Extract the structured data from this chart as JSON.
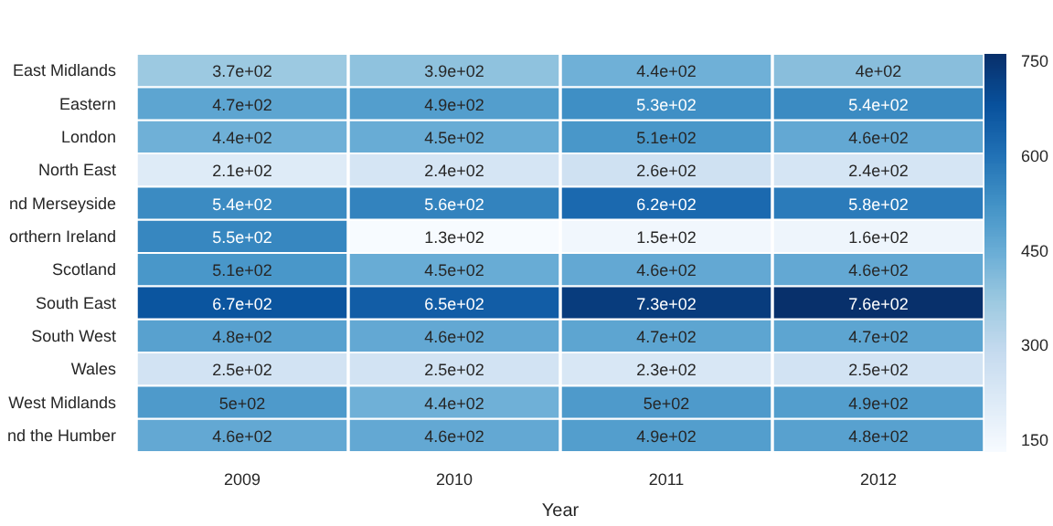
{
  "chart_data": {
    "type": "heatmap",
    "xlabel": "Year",
    "categories": [
      "2009",
      "2010",
      "2011",
      "2012"
    ],
    "y_categories": [
      "East Midlands",
      "Eastern",
      "London",
      "North East",
      "nd Merseyside",
      "orthern Ireland",
      "Scotland",
      "South East",
      "South West",
      "Wales",
      "West Midlands",
      "nd the Humber"
    ],
    "cells": [
      [
        370,
        390,
        440,
        400
      ],
      [
        470,
        490,
        530,
        540
      ],
      [
        440,
        450,
        510,
        460
      ],
      [
        210,
        240,
        260,
        240
      ],
      [
        540,
        560,
        620,
        580
      ],
      [
        550,
        130,
        150,
        160
      ],
      [
        510,
        450,
        460,
        460
      ],
      [
        670,
        650,
        730,
        760
      ],
      [
        480,
        460,
        470,
        470
      ],
      [
        250,
        250,
        230,
        250
      ],
      [
        500,
        440,
        500,
        490
      ],
      [
        460,
        460,
        490,
        480
      ]
    ],
    "cell_labels": [
      [
        "3.7e+02",
        "3.9e+02",
        "4.4e+02",
        "4e+02"
      ],
      [
        "4.7e+02",
        "4.9e+02",
        "5.3e+02",
        "5.4e+02"
      ],
      [
        "4.4e+02",
        "4.5e+02",
        "5.1e+02",
        "4.6e+02"
      ],
      [
        "2.1e+02",
        "2.4e+02",
        "2.6e+02",
        "2.4e+02"
      ],
      [
        "5.4e+02",
        "5.6e+02",
        "6.2e+02",
        "5.8e+02"
      ],
      [
        "5.5e+02",
        "1.3e+02",
        "1.5e+02",
        "1.6e+02"
      ],
      [
        "5.1e+02",
        "4.5e+02",
        "4.6e+02",
        "4.6e+02"
      ],
      [
        "6.7e+02",
        "6.5e+02",
        "7.3e+02",
        "7.6e+02"
      ],
      [
        "4.8e+02",
        "4.6e+02",
        "4.7e+02",
        "4.7e+02"
      ],
      [
        "2.5e+02",
        "2.5e+02",
        "2.3e+02",
        "2.5e+02"
      ],
      [
        "5e+02",
        "4.4e+02",
        "5e+02",
        "4.9e+02"
      ],
      [
        "4.6e+02",
        "4.6e+02",
        "4.9e+02",
        "4.8e+02"
      ]
    ],
    "clim": [
      130,
      760
    ],
    "cticks": [
      150,
      300,
      450,
      600,
      750
    ]
  }
}
